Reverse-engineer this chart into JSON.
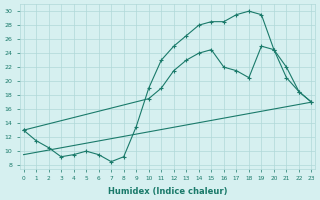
{
  "xlabel": "Humidex (Indice chaleur)",
  "line1_x": [
    0,
    1,
    2,
    3,
    4,
    5,
    6,
    7,
    8,
    9,
    10,
    11,
    12,
    13,
    14,
    15,
    16,
    17,
    18,
    19,
    20,
    21,
    22,
    23
  ],
  "line1_y": [
    13,
    11.5,
    10.5,
    9.2,
    9.5,
    10.0,
    9.5,
    8.5,
    9.2,
    13.5,
    19.0,
    23.0,
    25.0,
    26.5,
    28.0,
    28.5,
    28.5,
    29.5,
    30.0,
    29.5,
    24.5,
    20.5,
    18.5,
    17.0
  ],
  "line2_x": [
    0,
    23
  ],
  "line2_y": [
    9.5,
    17.0
  ],
  "line3_x": [
    0,
    10,
    11,
    12,
    13,
    14,
    15,
    16,
    17,
    18,
    19,
    20,
    21,
    22,
    23
  ],
  "line3_y": [
    13,
    17.5,
    19.0,
    21.5,
    23.0,
    24.0,
    24.5,
    22.0,
    21.5,
    20.5,
    25.0,
    24.5,
    22.0,
    18.5,
    17.0
  ],
  "color": "#1a7a6a",
  "bg_color": "#d6f0f0",
  "grid_color": "#b0d8d8",
  "xlim": [
    -0.3,
    23.3
  ],
  "ylim": [
    7.5,
    31
  ],
  "yticks": [
    8,
    10,
    12,
    14,
    16,
    18,
    20,
    22,
    24,
    26,
    28,
    30
  ],
  "xticks": [
    0,
    1,
    2,
    3,
    4,
    5,
    6,
    7,
    8,
    9,
    10,
    11,
    12,
    13,
    14,
    15,
    16,
    17,
    18,
    19,
    20,
    21,
    22,
    23
  ]
}
